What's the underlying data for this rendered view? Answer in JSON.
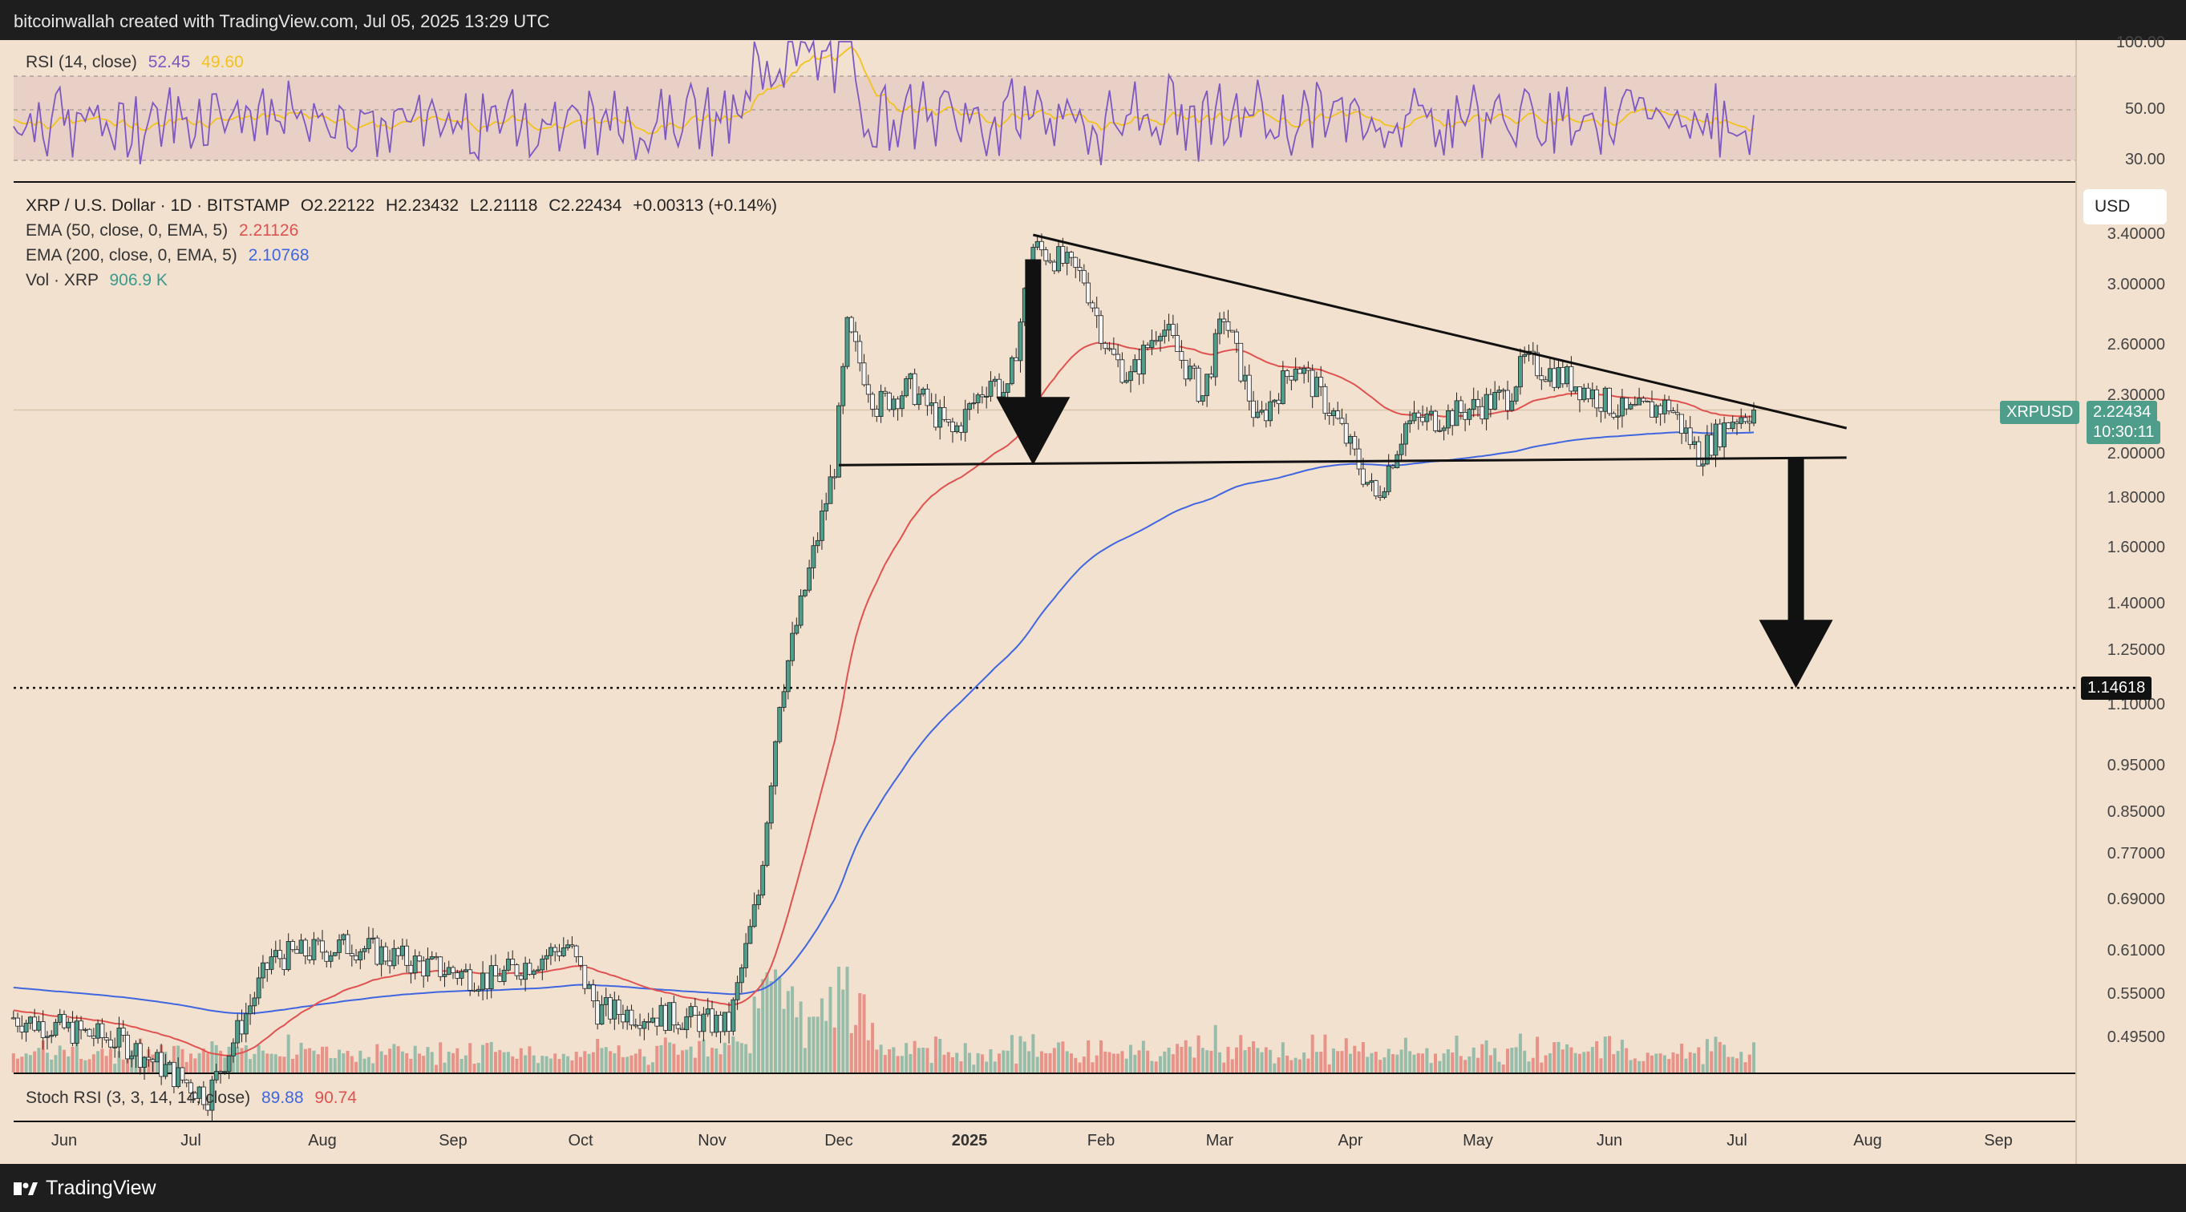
{
  "header": {
    "attribution": "bitcoinwallah created with TradingView.com, Jul 05, 2025 13:29 UTC"
  },
  "footer": {
    "brand": "TradingView"
  },
  "rsi_panel": {
    "label": "RSI (14, close)",
    "value": "52.45",
    "ma_value": "49.60",
    "axis_ticks": [
      "100.00",
      "50.00",
      "30.00"
    ]
  },
  "price_panel": {
    "symbol_line": "XRP / U.S. Dollar · 1D · BITSTAMP",
    "ohlc": {
      "o": "O2.22122",
      "h": "H2.23432",
      "l": "L2.21118",
      "c": "C2.22434",
      "change": "+0.00313 (+0.14%)"
    },
    "ema50": {
      "label": "EMA (50, close, 0, EMA, 5)",
      "value": "2.21126"
    },
    "ema200": {
      "label": "EMA (200, close, 0, EMA, 5)",
      "value": "2.10768"
    },
    "volume": {
      "label": "Vol · XRP",
      "value": "906.9 K"
    },
    "currency_button": "USD",
    "symbol_tag": "XRPUSD",
    "last_price_tag": "2.22434",
    "countdown_tag": "10:30:11",
    "target_level_tag": "1.14618",
    "axis_ticks": [
      "3.40000",
      "3.00000",
      "2.60000",
      "2.30000",
      "2.00000",
      "1.80000",
      "1.60000",
      "1.40000",
      "1.25000",
      "1.10000",
      "0.95000",
      "0.85000",
      "0.77000",
      "0.69000",
      "0.61000",
      "0.55000",
      "0.49500"
    ]
  },
  "stoch_panel": {
    "label": "Stoch RSI (3, 3, 14, 14, close)",
    "k": "89.88",
    "d": "90.74"
  },
  "x_axis": [
    "Jun",
    "Jul",
    "Aug",
    "Sep",
    "Oct",
    "Nov",
    "Dec",
    "2025",
    "Feb",
    "Mar",
    "Apr",
    "May",
    "Jun",
    "Jul",
    "Aug",
    "Sep"
  ],
  "colors": {
    "bull": "#4f9e8c",
    "bear": "#e0524f",
    "ema50": "#e0524f",
    "ema200": "#3f66e0",
    "rsi": "#7e57c2",
    "rsi_ma": "#f2c21d",
    "background": "#f2e1cf"
  },
  "chart_data": {
    "type": "candlestick",
    "scale": "log",
    "ylim": [
      0.47,
      3.55
    ],
    "x_start": "2024-05-20",
    "x_end": "2025-07-05",
    "trendlines": [
      {
        "name": "upper",
        "from": [
          "2025-01-16",
          3.4
        ],
        "to": [
          "2025-07-27",
          2.13
        ]
      },
      {
        "name": "support",
        "from": [
          "2024-12-01",
          1.95
        ],
        "to": [
          "2025-07-27",
          1.985
        ]
      }
    ],
    "horizontal_levels": [
      1.14618
    ],
    "arrows": [
      {
        "from": [
          "2025-01-16",
          3.2
        ],
        "to": [
          "2025-01-16",
          1.95
        ]
      },
      {
        "from": [
          "2025-07-15",
          1.985
        ],
        "to": [
          "2025-07-15",
          1.146
        ]
      }
    ],
    "last_close": 2.22434,
    "ema50_last": 2.21126,
    "ema200_last": 2.10768
  }
}
